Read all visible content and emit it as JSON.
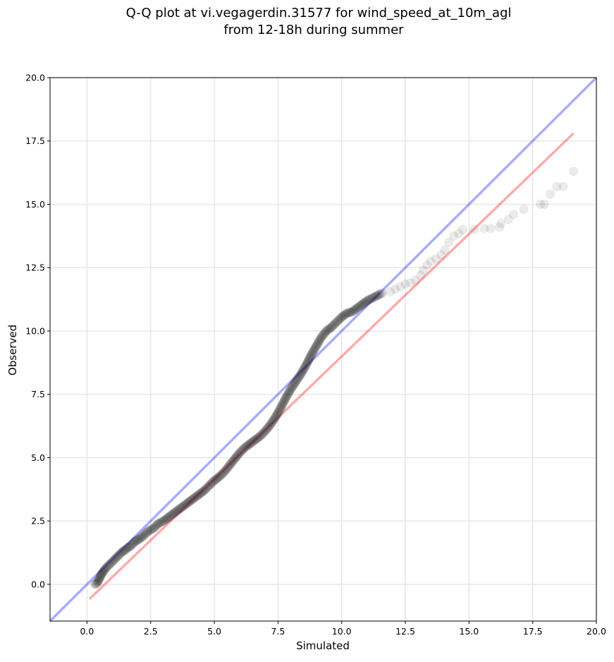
{
  "chart_data": {
    "type": "scatter",
    "title_lines": [
      "Q-Q plot at vi.vegagerdin.31577 for wind_speed_at_10m_agl",
      "from 12-18h during summer"
    ],
    "xlabel": "Simulated",
    "ylabel": "Observed",
    "xlim": [
      -1.45,
      20.0
    ],
    "ylim": [
      -1.45,
      20.0
    ],
    "x_ticks": [
      0.0,
      2.5,
      5.0,
      7.5,
      10.0,
      12.5,
      15.0,
      17.5,
      20.0
    ],
    "y_ticks": [
      0.0,
      2.5,
      5.0,
      7.5,
      10.0,
      12.5,
      15.0,
      17.5,
      20.0
    ],
    "x_tick_labels": [
      "0.0",
      "2.5",
      "5.0",
      "7.5",
      "10.0",
      "12.5",
      "15.0",
      "17.5",
      "20.0"
    ],
    "y_tick_labels": [
      "0.0",
      "2.5",
      "5.0",
      "7.5",
      "10.0",
      "12.5",
      "15.0",
      "17.5",
      "20.0"
    ],
    "grid": true,
    "colors": {
      "points": "#000000",
      "identity_line": "#0000ff",
      "fit_line": "#ff0000",
      "grid": "#e6e6e6"
    },
    "reference_lines": [
      {
        "kind": "identity",
        "x": [
          -1.45,
          20.0
        ],
        "y": [
          -1.45,
          20.0
        ]
      },
      {
        "kind": "fit",
        "x": [
          0.1,
          19.1
        ],
        "y": [
          -0.58,
          17.8
        ]
      }
    ],
    "x": [
      0.3,
      0.4,
      0.45,
      0.5,
      0.55,
      0.6,
      0.65,
      0.7,
      0.8,
      0.9,
      1.0,
      1.1,
      1.2,
      1.3,
      1.4,
      1.5,
      1.6,
      1.7,
      1.8,
      1.9,
      2.0,
      2.2,
      2.4,
      2.6,
      2.8,
      3.0,
      3.2,
      3.4,
      3.6,
      3.8,
      4.0,
      4.2,
      4.4,
      4.6,
      4.8,
      5.0,
      5.2,
      5.4,
      5.6,
      5.8,
      6.0,
      6.2,
      6.4,
      6.6,
      6.8,
      7.0,
      7.2,
      7.4,
      7.6,
      7.8,
      8.0,
      8.2,
      8.4,
      8.6,
      8.8,
      9.0,
      9.2,
      9.4,
      9.6,
      9.8,
      10.0,
      10.2,
      10.4,
      10.6,
      10.8,
      11.0,
      11.2,
      11.4,
      11.6,
      11.9,
      12.1,
      12.3,
      12.5,
      12.7,
      12.9,
      13.1,
      13.2,
      13.35,
      13.5,
      13.7,
      13.9,
      14.05,
      14.2,
      14.4,
      14.6,
      14.75,
      15.2,
      15.6,
      15.85,
      16.2,
      16.25,
      16.55,
      16.75,
      17.15,
      17.8,
      17.95,
      18.2,
      18.45,
      18.7,
      19.1
    ],
    "y": [
      0.0,
      0.05,
      0.15,
      0.25,
      0.35,
      0.45,
      0.5,
      0.6,
      0.7,
      0.8,
      0.9,
      1.0,
      1.1,
      1.2,
      1.3,
      1.35,
      1.45,
      1.5,
      1.6,
      1.7,
      1.75,
      1.9,
      2.1,
      2.2,
      2.4,
      2.5,
      2.65,
      2.8,
      2.95,
      3.1,
      3.25,
      3.4,
      3.55,
      3.7,
      3.9,
      4.1,
      4.25,
      4.45,
      4.7,
      4.95,
      5.2,
      5.4,
      5.55,
      5.7,
      5.85,
      6.05,
      6.3,
      6.6,
      6.95,
      7.35,
      7.7,
      8.0,
      8.3,
      8.65,
      9.05,
      9.4,
      9.75,
      10.0,
      10.15,
      10.35,
      10.55,
      10.7,
      10.75,
      10.9,
      11.05,
      11.2,
      11.3,
      11.4,
      11.5,
      11.55,
      11.65,
      11.75,
      11.85,
      11.9,
      12.0,
      12.2,
      12.4,
      12.6,
      12.75,
      12.85,
      13.0,
      13.2,
      13.5,
      13.75,
      13.85,
      14.0,
      14.0,
      14.05,
      14.05,
      14.1,
      14.25,
      14.4,
      14.6,
      14.8,
      15.0,
      15.0,
      15.4,
      15.7,
      15.7,
      16.3
    ]
  }
}
